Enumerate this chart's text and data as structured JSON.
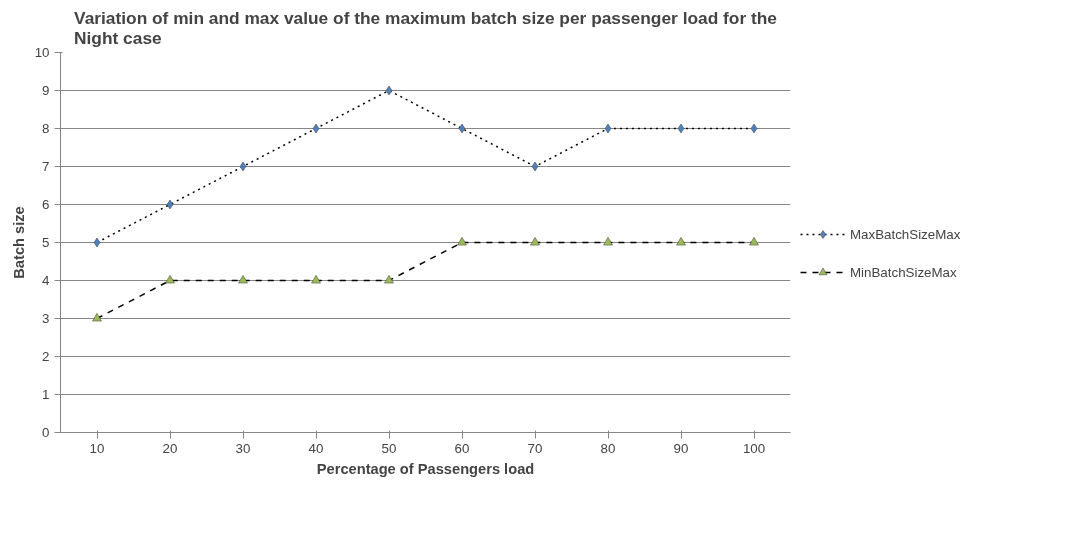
{
  "chart_data": {
    "type": "line",
    "title": "Variation of min and max value of the maximum batch size per passenger load for the Night case",
    "xlabel": "Percentage of Passengers load",
    "ylabel": "Batch size",
    "categories": [
      "10",
      "20",
      "30",
      "40",
      "50",
      "60",
      "70",
      "80",
      "90",
      "100"
    ],
    "series": [
      {
        "name": "MaxBatchSizeMax",
        "color": "#4f81bd",
        "marker": "diamond",
        "line_style": "dotted",
        "values": [
          5,
          6,
          7,
          8,
          9,
          8,
          7,
          8,
          8,
          8
        ]
      },
      {
        "name": "MinBatchSizeMax",
        "color": "#9bbb59",
        "marker": "triangle",
        "line_style": "dashed",
        "values": [
          3,
          4,
          4,
          4,
          4,
          5,
          5,
          5,
          5,
          5
        ]
      }
    ],
    "ylim": [
      0,
      10
    ],
    "yticks": [
      0,
      1,
      2,
      3,
      4,
      5,
      6,
      7,
      8,
      9,
      10
    ],
    "grid": "y",
    "legend": "right"
  }
}
